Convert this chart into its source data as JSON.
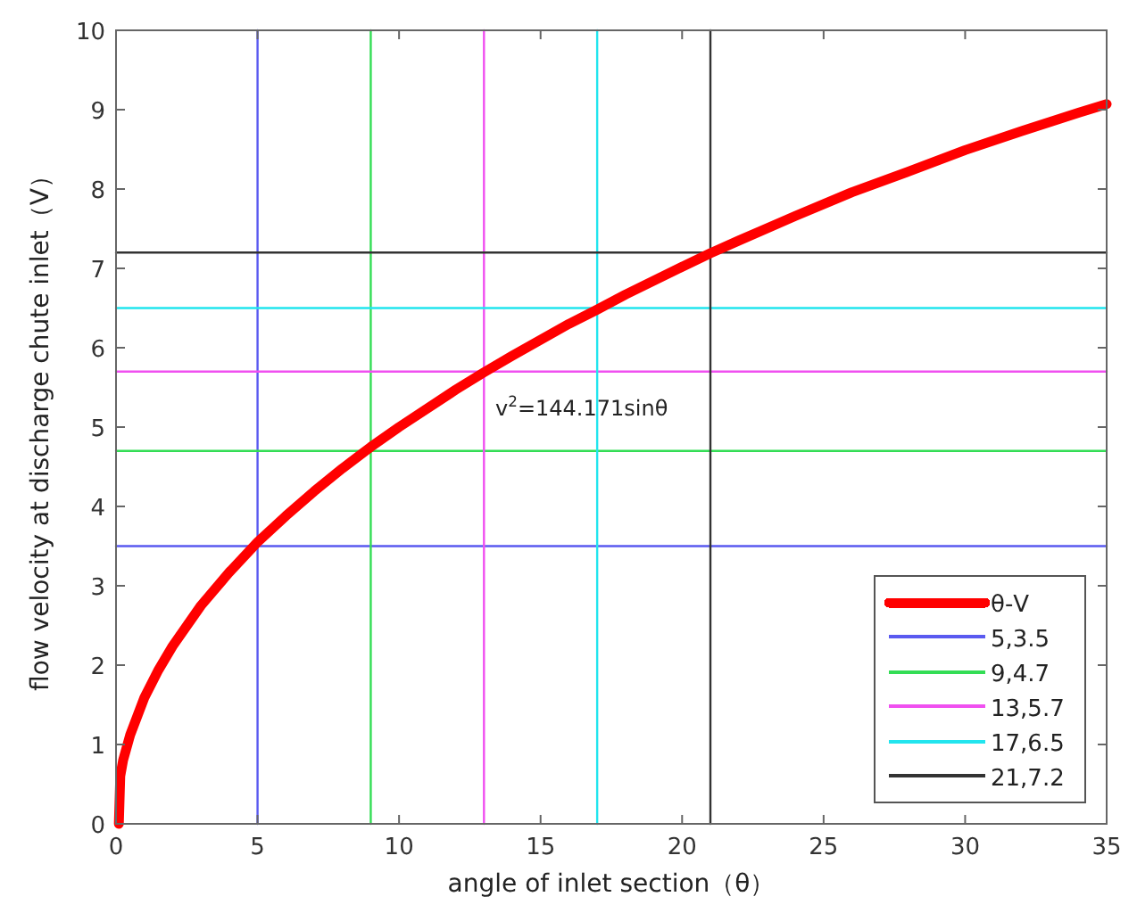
{
  "chart_data": {
    "type": "line",
    "xlabel": "angle of inlet section（θ）",
    "ylabel": "flow velocity at discharge chute inlet（V）",
    "xlim": [
      0,
      35
    ],
    "ylim": [
      0,
      10
    ],
    "xticks": [
      0,
      5,
      10,
      15,
      20,
      25,
      30,
      35
    ],
    "yticks": [
      0,
      1,
      2,
      3,
      4,
      5,
      6,
      7,
      8,
      9,
      10
    ],
    "grid": false,
    "legend": "bottom right",
    "marker": "none",
    "line_style": "solid",
    "series": [
      {
        "name": "θ-V",
        "color": "#ff0000",
        "x": [
          0.1,
          0.15,
          0.25,
          0.5,
          1,
          1.5,
          2,
          3,
          4,
          5,
          6,
          7,
          8,
          9,
          10,
          12,
          13,
          14,
          16,
          17,
          18,
          20,
          21,
          22,
          24,
          26,
          28,
          30,
          32,
          34,
          35
        ],
        "values": [
          0,
          0.6,
          0.8,
          1.12,
          1.59,
          1.94,
          2.24,
          2.75,
          3.17,
          3.55,
          3.88,
          4.19,
          4.48,
          4.75,
          5.0,
          5.47,
          5.69,
          5.9,
          6.3,
          6.48,
          6.67,
          7.02,
          7.19,
          7.35,
          7.66,
          7.96,
          8.22,
          8.49,
          8.73,
          8.96,
          9.07
        ]
      },
      {
        "name": "5,3.5",
        "color": "#5a5af0",
        "x": [
          0,
          35,
          null,
          5,
          5
        ],
        "values": [
          3.5,
          3.5,
          null,
          0,
          10
        ]
      },
      {
        "name": "9,4.7",
        "color": "#33dd55",
        "x": [
          0,
          35,
          null,
          9,
          9
        ],
        "values": [
          4.7,
          4.7,
          null,
          0,
          10
        ]
      },
      {
        "name": "13,5.7",
        "color": "#f050f0",
        "x": [
          0,
          35,
          null,
          13,
          13
        ],
        "values": [
          5.7,
          5.7,
          null,
          0,
          10
        ]
      },
      {
        "name": "17,6.5",
        "color": "#22e5ee",
        "x": [
          0,
          35,
          null,
          17,
          17
        ],
        "values": [
          6.5,
          6.5,
          null,
          0,
          10
        ]
      },
      {
        "name": "21,7.2",
        "color": "#333333",
        "x": [
          0,
          35,
          null,
          21,
          21
        ],
        "values": [
          7.2,
          7.2,
          null,
          0,
          10
        ]
      }
    ],
    "annotations": [
      "v$^{2}$=144.171sinθ"
    ]
  }
}
